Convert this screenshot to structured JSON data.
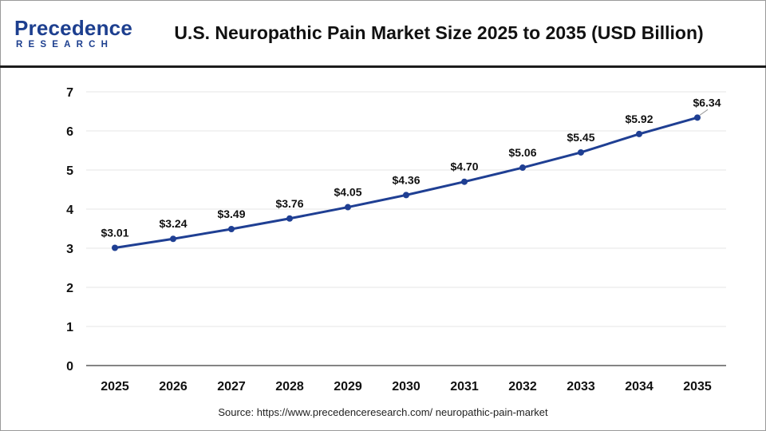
{
  "header": {
    "logo_top": "Precedence",
    "logo_bottom": "RESEARCH",
    "title": "U.S. Neuropathic Pain Market Size 2025 to 2035 (USD Billion)"
  },
  "footer": {
    "source": "Source: https://www.precedenceresearch.com/ neuropathic-pain-market"
  },
  "colors": {
    "brand": "#1d3f8f",
    "line": "#1f3f93",
    "grid": "#e6e6e6",
    "text": "#111111"
  },
  "chart_data": {
    "type": "line",
    "title": "U.S. Neuropathic Pain Market Size 2025 to 2035 (USD Billion)",
    "xlabel": "",
    "ylabel": "",
    "categories": [
      "2025",
      "2026",
      "2027",
      "2028",
      "2029",
      "2030",
      "2031",
      "2032",
      "2033",
      "2034",
      "2035"
    ],
    "values": [
      3.01,
      3.24,
      3.49,
      3.76,
      4.05,
      4.36,
      4.7,
      5.06,
      5.45,
      5.92,
      6.34
    ],
    "data_labels": [
      "$3.01",
      "$3.24",
      "$3.49",
      "$3.76",
      "$4.05",
      "$4.36",
      "$4.70",
      "$5.06",
      "$5.45",
      "$5.92",
      "$6.34"
    ],
    "y_ticks": [
      0,
      1,
      2,
      3,
      4,
      5,
      6,
      7
    ],
    "ylim": [
      0,
      7
    ],
    "grid": true,
    "legend": "none"
  }
}
